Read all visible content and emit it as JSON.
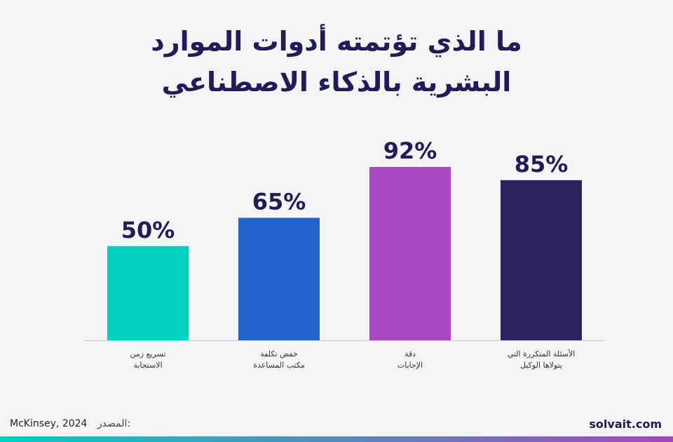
{
  "title_line1": "ما الذي تؤتمته أدوات الموارد",
  "title_line2": "البشرية بالذكاء الاصطناعي",
  "source_label": "المصدر:",
  "source_value": "McKinsey, 2024",
  "brand": "solvait.com",
  "colors": {
    "title": "#1f1c58",
    "gradient_start": "#00cfc0",
    "gradient_end": "#a646c0"
  },
  "chart_data": {
    "type": "bar",
    "title": "ما الذي تؤتمته أدوات الموارد البشرية بالذكاء الاصطناعي",
    "categories": [
      [
        "تسريع زمن",
        "الاستجابة"
      ],
      [
        "خفض تكلفة",
        "مكتب المساعدة"
      ],
      [
        "دقة",
        "الإجابات"
      ],
      [
        "الأسئلة المتكررة التي",
        "يتولاها الوكيل"
      ]
    ],
    "values": [
      50,
      65,
      92,
      85
    ],
    "value_labels": [
      "50%",
      "65%",
      "92%",
      "85%"
    ],
    "bar_colors": [
      "#00d1c1",
      "#2162cc",
      "#a846c4",
      "#28245e"
    ],
    "ylim": [
      0,
      100
    ],
    "grid": false,
    "legend": "none"
  }
}
